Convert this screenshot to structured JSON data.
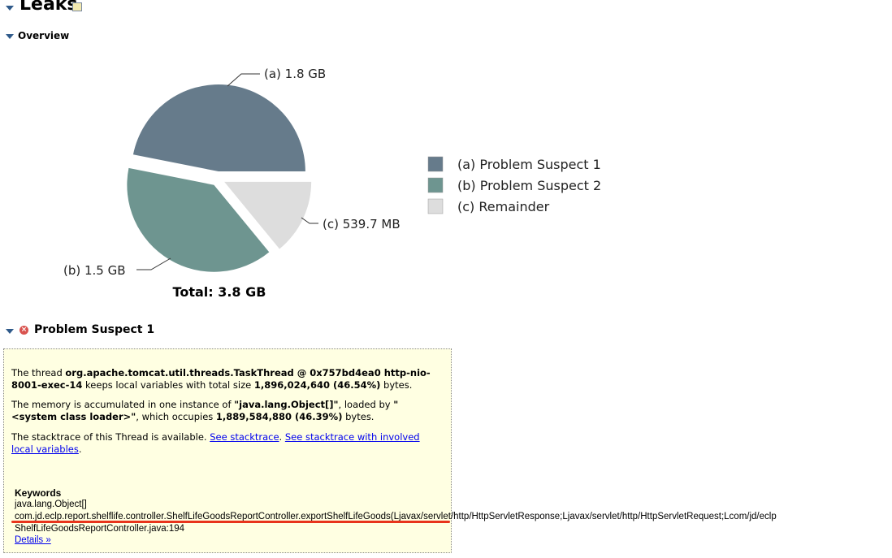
{
  "header": {
    "title": "Leaks",
    "icon": "report-icon"
  },
  "overview": {
    "title": "Overview"
  },
  "chart_data": {
    "type": "pie",
    "slices": [
      {
        "label": "(a)",
        "name": "Problem Suspect 1",
        "value": 1.8,
        "display": "1.8 GB",
        "color": "#667b8b"
      },
      {
        "label": "(b)",
        "name": "Problem Suspect 2",
        "value": 1.5,
        "display": "1.5 GB",
        "color": "#6e9590"
      },
      {
        "label": "(c)",
        "name": "Remainder",
        "value": 0.5397,
        "display": "539.7 MB",
        "color": "#dddddd"
      }
    ],
    "unit": "GB",
    "total": "Total: 3.8 GB",
    "legend_placement": "right"
  },
  "suspect": {
    "title": "Problem Suspect 1",
    "status_icon": "error-icon",
    "p1": [
      "The thread ",
      "org.apache.tomcat.util.threads.TaskThread @ 0x757bd4ea0 http-nio-8001-exec-14",
      " keeps local variables with total size ",
      "1,896,024,640 (46.54%)",
      " bytes."
    ],
    "p2": [
      "The memory is accumulated in one instance of ",
      "\"java.lang.Object[]\"",
      ", loaded by ",
      "\"<system class loader>\"",
      ", which occupies ",
      "1,889,584,880 (46.39%)",
      " bytes."
    ],
    "p3": [
      "The stacktrace of this Thread is available. ",
      "See stacktrace",
      ". ",
      "See stacktrace with involved local variables",
      "."
    ],
    "keywords_title": "Keywords",
    "keywords": [
      "java.lang.Object[]",
      "com.jd.eclp.report.shelflife.controller.ShelfLifeGoodsReportController.exportShelfLifeGoods(Ljavax/servlet/http/HttpServletResponse;Ljavax/servlet/http/HttpServletRequest;Lcom/jd/eclp",
      "ShelfLifeGoodsReportController.java:194"
    ],
    "details": "Details »",
    "highlight_color": "#e8341c"
  }
}
